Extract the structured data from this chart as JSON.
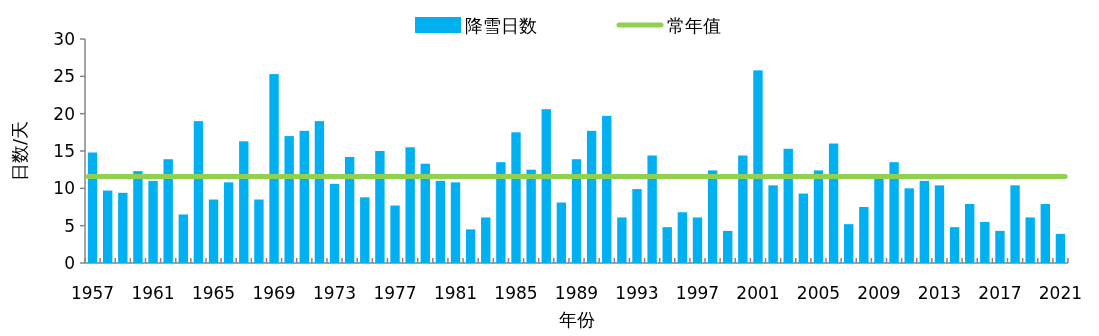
{
  "chart_data": {
    "type": "bar",
    "xlabel": "年份",
    "ylabel": "日数/天",
    "legend": "top",
    "categories": [
      "1957",
      null,
      null,
      null,
      "1961",
      null,
      null,
      null,
      "1965",
      null,
      null,
      null,
      "1969",
      null,
      null,
      null,
      "1973",
      null,
      null,
      null,
      "1977",
      null,
      null,
      null,
      "1981",
      null,
      null,
      null,
      "1985",
      null,
      null,
      null,
      "1989",
      null,
      null,
      null,
      "1993",
      null,
      null,
      null,
      "1997",
      null,
      null,
      null,
      "2001",
      null,
      null,
      null,
      "2005",
      null,
      null,
      null,
      "2009",
      null,
      null,
      null,
      "2013",
      null,
      null,
      null,
      "2017",
      null,
      null,
      null,
      "2021"
    ],
    "series": [
      {
        "name": "降雪日数",
        "color": "#00b0f0",
        "values": [
          14.8,
          9.7,
          9.4,
          12.3,
          11,
          13.9,
          6.5,
          19,
          8.5,
          10.8,
          16.3,
          8.5,
          25.3,
          17,
          17.7,
          19,
          10.6,
          14.2,
          8.8,
          15,
          7.7,
          15.5,
          13.3,
          11,
          10.8,
          4.5,
          6.1,
          13.5,
          17.5,
          12.5,
          20.6,
          8.1,
          13.9,
          17.7,
          19.7,
          6.1,
          9.9,
          14.4,
          4.8,
          6.8,
          6.1,
          12.4,
          4.3,
          14.4,
          25.8,
          10.4,
          15.3,
          9.3,
          12.4,
          16,
          5.2,
          7.5,
          11.3,
          13.5,
          10,
          11,
          10.4,
          4.8,
          7.9,
          5.5,
          4.3,
          10.4,
          6.1,
          7.9,
          3.9
        ]
      }
    ],
    "ref_lines": [
      {
        "axis": "y",
        "value": 11.6,
        "label": "常年值",
        "color": "#92d050"
      }
    ],
    "ylim": [
      0,
      30
    ],
    "yticks": [
      0,
      5,
      10,
      15,
      20,
      25,
      30
    ]
  }
}
